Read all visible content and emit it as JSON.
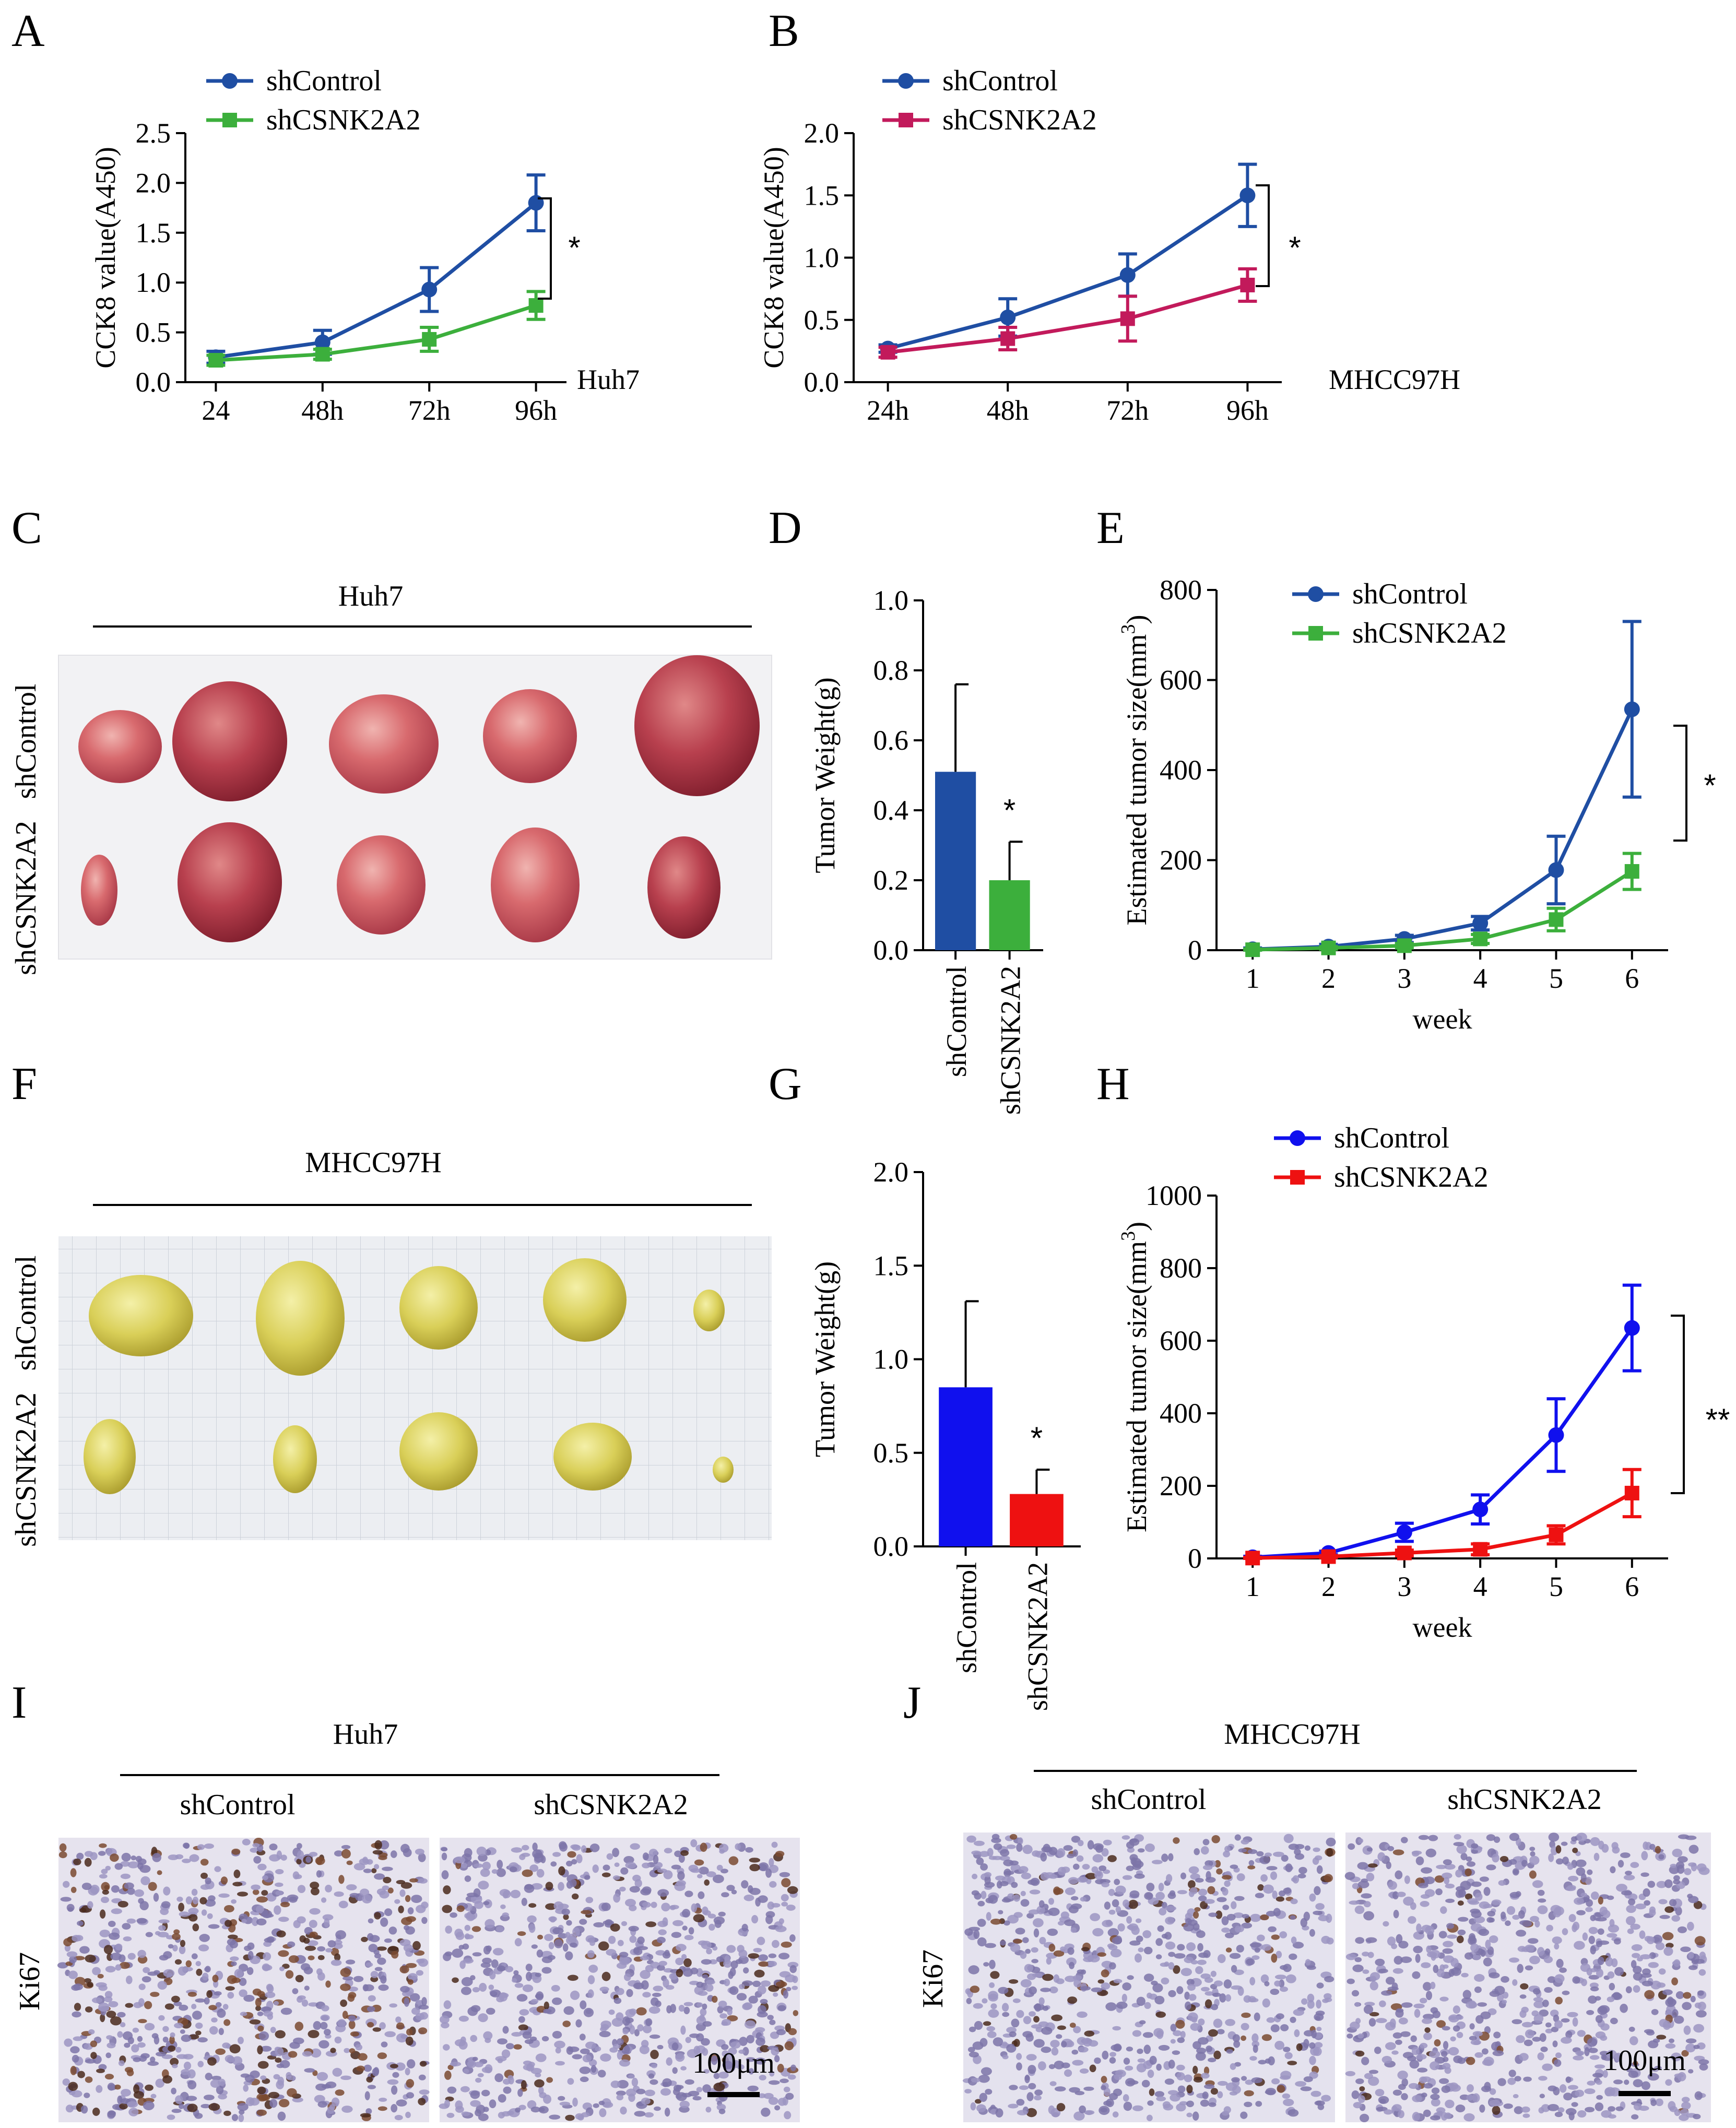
{
  "panel_letters": [
    "A",
    "B",
    "C",
    "D",
    "E",
    "F",
    "G",
    "H",
    "I",
    "J"
  ],
  "colors": {
    "blue": "#1f4ea3",
    "green": "#3caf3c",
    "magenta": "#c21a5b",
    "brightblue": "#1010ee",
    "red": "#ee1111"
  },
  "photo_C": {
    "title": "Huh7",
    "rows": [
      "shControl",
      "shCSNK2A2"
    ],
    "image": "tumor-photo-huh7"
  },
  "photo_F": {
    "title": "MHCC97H",
    "rows": [
      "shControl",
      "shCSNK2A2"
    ],
    "image": "tumor-photo-mhcc97h"
  },
  "ihc_I": {
    "title": "Huh7",
    "columns": [
      "shControl",
      "shCSNK2A2"
    ],
    "row_label": "Ki67",
    "scale_bar": "100μm"
  },
  "ihc_J": {
    "title": "MHCC97H",
    "columns": [
      "shControl",
      "shCSNK2A2"
    ],
    "row_label": "Ki67",
    "scale_bar": "100μm"
  },
  "chart_data": [
    {
      "id": "A",
      "type": "line",
      "ylabel": "CCK8 value(A450)",
      "xlabel": "",
      "categories": [
        "24",
        "48h",
        "72h",
        "96h"
      ],
      "ylim": [
        0,
        2.5
      ],
      "yticks": [
        "0.0",
        "0.5",
        "1.0",
        "1.5",
        "2.0",
        "2.5"
      ],
      "cell_line": "Huh7",
      "significance": "*",
      "series": [
        {
          "name": "shControl",
          "color": "#1f4ea3",
          "marker": "circle",
          "values": [
            0.25,
            0.4,
            0.93,
            1.8
          ],
          "errors": [
            0.06,
            0.12,
            0.22,
            0.28
          ]
        },
        {
          "name": "shCSNK2A2",
          "color": "#3caf3c",
          "marker": "square",
          "values": [
            0.22,
            0.28,
            0.43,
            0.77
          ],
          "errors": [
            0.05,
            0.05,
            0.12,
            0.14
          ]
        }
      ]
    },
    {
      "id": "B",
      "type": "line",
      "ylabel": "CCK8 value(A450)",
      "xlabel": "",
      "categories": [
        "24h",
        "48h",
        "72h",
        "96h"
      ],
      "ylim": [
        0,
        2.0
      ],
      "yticks": [
        "0.0",
        "0.5",
        "1.0",
        "1.5",
        "2.0"
      ],
      "cell_line": "MHCC97H",
      "significance": "*",
      "series": [
        {
          "name": "shControl",
          "color": "#1f4ea3",
          "marker": "circle",
          "values": [
            0.27,
            0.52,
            0.86,
            1.5
          ],
          "errors": [
            0.03,
            0.15,
            0.17,
            0.25
          ]
        },
        {
          "name": "shCSNK2A2",
          "color": "#c21a5b",
          "marker": "square",
          "values": [
            0.24,
            0.35,
            0.51,
            0.78
          ],
          "errors": [
            0.04,
            0.09,
            0.18,
            0.13
          ]
        }
      ]
    },
    {
      "id": "D",
      "type": "bar",
      "ylabel": "Tumor Weight(g)",
      "categories": [
        "shControl",
        "shCSNK2A2"
      ],
      "ylim": [
        0,
        1.0
      ],
      "yticks": [
        "0.0",
        "0.2",
        "0.4",
        "0.6",
        "0.8",
        "1.0"
      ],
      "values": [
        0.51,
        0.2
      ],
      "errors": [
        0.25,
        0.11
      ],
      "colors": [
        "#1f4ea3",
        "#3caf3c"
      ],
      "significance": "*"
    },
    {
      "id": "E",
      "type": "line",
      "ylabel": "Estimated tumor size(mm",
      "ylabel_sup": "3",
      "ylabel_tail": ")",
      "xlabel": "week",
      "categories": [
        "1",
        "2",
        "3",
        "4",
        "5",
        "6"
      ],
      "ylim": [
        0,
        800
      ],
      "yticks": [
        "0",
        "200",
        "400",
        "600",
        "800"
      ],
      "significance": "*",
      "series": [
        {
          "name": "shControl",
          "color": "#1f4ea3",
          "marker": "circle",
          "values": [
            2,
            8,
            25,
            60,
            178,
            535
          ],
          "errors": [
            3,
            5,
            8,
            15,
            75,
            195
          ]
        },
        {
          "name": "shCSNK2A2",
          "color": "#3caf3c",
          "marker": "square",
          "values": [
            1,
            5,
            10,
            25,
            68,
            175
          ],
          "errors": [
            2,
            3,
            5,
            10,
            25,
            40
          ]
        }
      ]
    },
    {
      "id": "G",
      "type": "bar",
      "ylabel": "Tumor Weight(g)",
      "categories": [
        "shControl",
        "shCSNK2A2"
      ],
      "ylim": [
        0,
        2.0
      ],
      "yticks": [
        "0.0",
        "0.5",
        "1.0",
        "1.5",
        "2.0"
      ],
      "values": [
        0.85,
        0.28
      ],
      "errors": [
        0.46,
        0.13
      ],
      "colors": [
        "#1010ee",
        "#ee1111"
      ],
      "significance": "*"
    },
    {
      "id": "H",
      "type": "line",
      "ylabel": "Estimated tumor size(mm",
      "ylabel_sup": "3",
      "ylabel_tail": ")",
      "xlabel": "week",
      "categories": [
        "1",
        "2",
        "3",
        "4",
        "5",
        "6"
      ],
      "ylim": [
        0,
        1000
      ],
      "yticks": [
        "0",
        "200",
        "400",
        "600",
        "800",
        "1000"
      ],
      "significance": "**",
      "series": [
        {
          "name": "shControl",
          "color": "#1010ee",
          "marker": "circle",
          "values": [
            3,
            15,
            72,
            135,
            340,
            635
          ],
          "errors": [
            3,
            5,
            25,
            40,
            100,
            118
          ]
        },
        {
          "name": "shCSNK2A2",
          "color": "#ee1111",
          "marker": "square",
          "values": [
            1,
            5,
            15,
            25,
            65,
            180
          ],
          "errors": [
            2,
            3,
            8,
            15,
            25,
            65
          ]
        }
      ]
    }
  ]
}
